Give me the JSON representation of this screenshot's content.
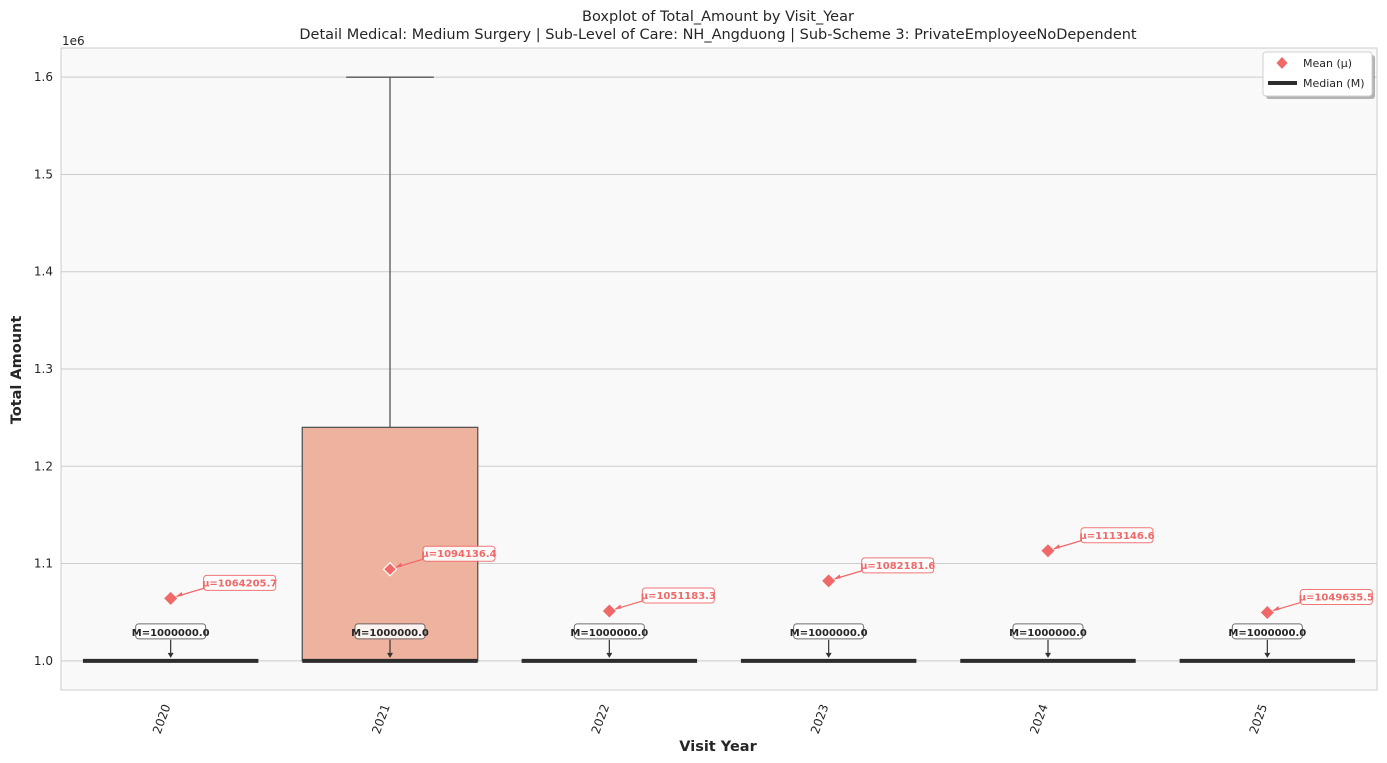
{
  "chart_data": {
    "type": "box",
    "title": "Boxplot of Total_Amount by Visit_Year",
    "subtitle": "Detail Medical: Medium Surgery | Sub-Level of Care: NH_Angduong | Sub-Scheme 3: PrivateEmployeeNoDependent",
    "xlabel": "Visit Year",
    "ylabel": "Total Amount",
    "y_offset_label": "1e6",
    "ylim": [
      970000,
      1630000
    ],
    "y_ticks": [
      1000000,
      1100000,
      1200000,
      1300000,
      1400000,
      1500000,
      1600000
    ],
    "y_tick_labels": [
      "1.0",
      "1.1",
      "1.2",
      "1.3",
      "1.4",
      "1.5",
      "1.6"
    ],
    "categories": [
      "2020",
      "2021",
      "2022",
      "2023",
      "2024",
      "2025"
    ],
    "boxes": [
      {
        "category": "2020",
        "q1": 1000000,
        "median": 1000000,
        "q3": 1000000,
        "whisker_low": 1000000,
        "whisker_high": 1000000,
        "mean": 1064205.7,
        "mean_label": "μ=1064205.7",
        "median_label": "M=1000000.0"
      },
      {
        "category": "2021",
        "q1": 1000000,
        "median": 1000000,
        "q3": 1240000,
        "whisker_low": 1000000,
        "whisker_high": 1600000,
        "mean": 1094136.4,
        "mean_label": "μ=1094136.4",
        "median_label": "M=1000000.0"
      },
      {
        "category": "2022",
        "q1": 1000000,
        "median": 1000000,
        "q3": 1000000,
        "whisker_low": 1000000,
        "whisker_high": 1000000,
        "mean": 1051183.3,
        "mean_label": "μ=1051183.3",
        "median_label": "M=1000000.0"
      },
      {
        "category": "2023",
        "q1": 1000000,
        "median": 1000000,
        "q3": 1000000,
        "whisker_low": 1000000,
        "whisker_high": 1000000,
        "mean": 1082181.6,
        "mean_label": "μ=1082181.6",
        "median_label": "M=1000000.0"
      },
      {
        "category": "2024",
        "q1": 1000000,
        "median": 1000000,
        "q3": 1000000,
        "whisker_low": 1000000,
        "whisker_high": 1000000,
        "mean": 1113146.6,
        "mean_label": "μ=1113146.6",
        "median_label": "M=1000000.0"
      },
      {
        "category": "2025",
        "q1": 1000000,
        "median": 1000000,
        "q3": 1000000,
        "whisker_low": 1000000,
        "whisker_high": 1000000,
        "mean": 1049635.5,
        "mean_label": "μ=1049635.5",
        "median_label": "M=1000000.0"
      }
    ],
    "legend": {
      "placement": "top-right",
      "entries": [
        {
          "key": "mean",
          "label": "Mean (μ)"
        },
        {
          "key": "median",
          "label": "Median (M)"
        }
      ]
    },
    "grid": "y",
    "colors": {
      "box_fill": "#eeb39f",
      "box_edge": "#555555",
      "median": "#2d2d2d",
      "mean": "#f16868",
      "plot_bg": "#f9f9f9",
      "grid": "#cccccc"
    }
  }
}
